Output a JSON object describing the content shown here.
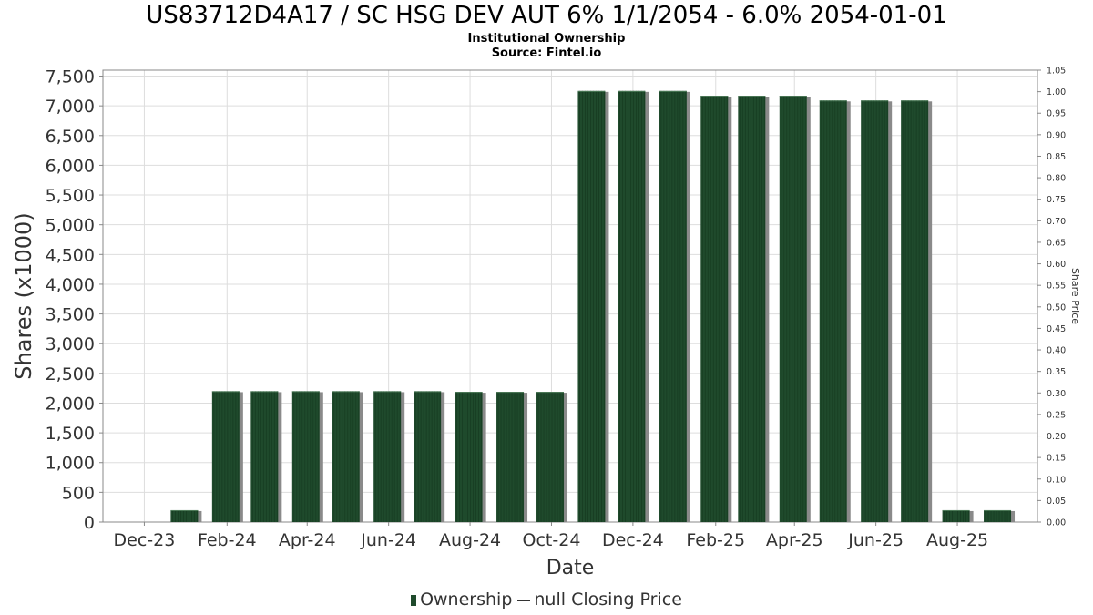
{
  "header": {
    "title": "US83712D4A17 / SC HSG DEV AUT 6% 1/1/2054 - 6.0% 2054-01-01",
    "subtitle1": "Institutional Ownership",
    "subtitle2": "Source: Fintel.io"
  },
  "legend": {
    "ownership": "Ownership",
    "price": "null Closing Price"
  },
  "colors": {
    "bar": "#1f4a2c",
    "bar_shadow": "#8a8a8a",
    "grid": "#dddddd",
    "axis": "#888888"
  },
  "chart_data": {
    "type": "bar",
    "xlabel": "Date",
    "ylabel": "Shares (x1000)",
    "y2label": "Share Price",
    "ylim": [
      0,
      7600
    ],
    "y2lim": [
      0,
      1.05
    ],
    "grid": true,
    "legend_position": "bottom",
    "x_tick_labels": [
      "Dec-23",
      "Feb-24",
      "Apr-24",
      "Jun-24",
      "Aug-24",
      "Oct-24",
      "Dec-24",
      "Feb-25",
      "Apr-25",
      "Jun-25",
      "Aug-25"
    ],
    "y_tick_labels": [
      "0",
      "500",
      "1,000",
      "1,500",
      "2,000",
      "2,500",
      "3,000",
      "3,500",
      "4,000",
      "4,500",
      "5,000",
      "5,500",
      "6,000",
      "6,500",
      "7,000",
      "7,500"
    ],
    "y2_tick_labels": [
      "0.00",
      "0.05",
      "0.10",
      "0.15",
      "0.20",
      "0.25",
      "0.30",
      "0.35",
      "0.40",
      "0.45",
      "0.50",
      "0.55",
      "0.60",
      "0.65",
      "0.70",
      "0.75",
      "0.80",
      "0.85",
      "0.90",
      "0.95",
      "1.00",
      "1.05"
    ],
    "series": [
      {
        "name": "Ownership",
        "x": [
          "2023-12-31",
          "2024-01-31",
          "2024-02-29",
          "2024-03-31",
          "2024-04-30",
          "2024-05-31",
          "2024-06-30",
          "2024-07-31",
          "2024-08-31",
          "2024-09-30",
          "2024-10-31",
          "2024-11-30",
          "2024-12-31",
          "2025-01-31",
          "2025-02-28",
          "2025-03-31",
          "2025-04-30",
          "2025-05-31",
          "2025-06-30",
          "2025-07-31",
          "2025-08-31"
        ],
        "values": [
          200,
          2200,
          2200,
          2200,
          2200,
          2200,
          2200,
          2190,
          2190,
          2190,
          7250,
          7250,
          7250,
          7170,
          7170,
          7170,
          7090,
          7090,
          7090,
          200,
          200
        ]
      }
    ]
  }
}
